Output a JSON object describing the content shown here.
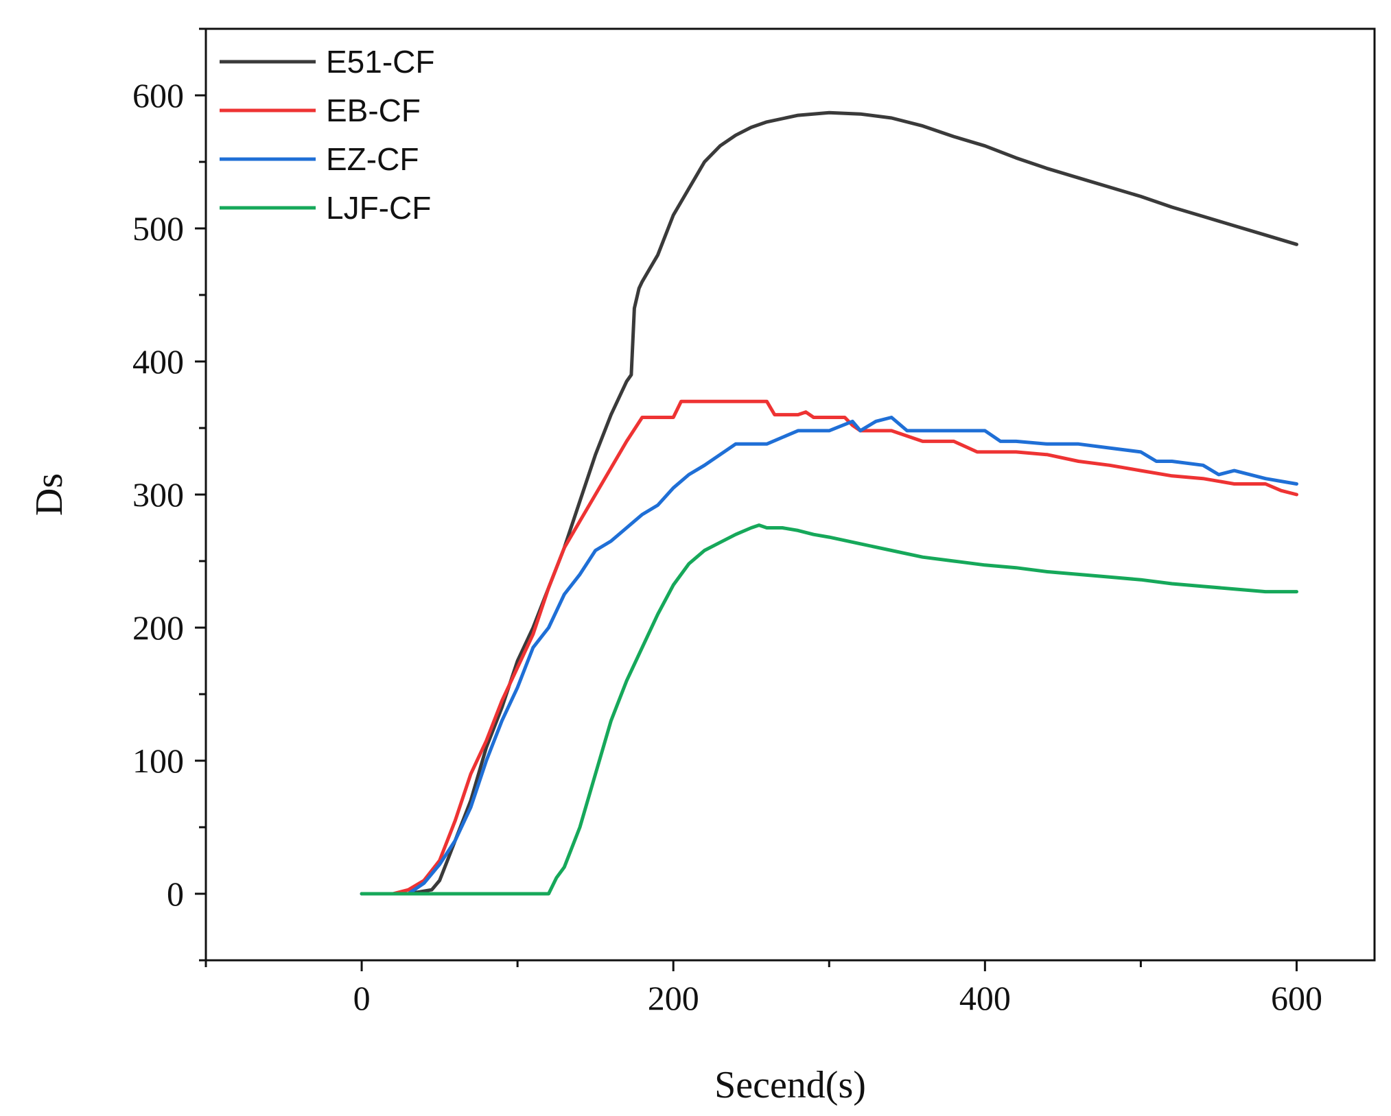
{
  "chart_data": {
    "type": "line",
    "title": "",
    "xlabel": "Secend(s)",
    "ylabel": "Ds",
    "xlim": [
      -100,
      650
    ],
    "ylim": [
      -50,
      650
    ],
    "xticks": [
      0,
      200,
      400,
      600
    ],
    "yticks": [
      0,
      100,
      200,
      300,
      400,
      500,
      600
    ],
    "xtick_labels": [
      "0",
      "200",
      "400",
      "600"
    ],
    "ytick_labels": [
      "0",
      "100",
      "200",
      "300",
      "400",
      "500",
      "600"
    ],
    "grid": false,
    "legend_position": "top-left",
    "series": [
      {
        "name": "E51-CF",
        "color": "#3a3a3a",
        "x": [
          0,
          30,
          45,
          50,
          55,
          60,
          70,
          80,
          90,
          100,
          110,
          120,
          130,
          140,
          150,
          160,
          170,
          173,
          175,
          178,
          180,
          185,
          190,
          200,
          210,
          220,
          230,
          240,
          250,
          260,
          280,
          300,
          320,
          340,
          360,
          380,
          400,
          420,
          440,
          460,
          480,
          500,
          520,
          540,
          560,
          580,
          600
        ],
        "y": [
          0,
          0,
          3,
          10,
          25,
          40,
          70,
          110,
          140,
          175,
          200,
          230,
          260,
          295,
          330,
          360,
          385,
          390,
          440,
          455,
          460,
          470,
          480,
          510,
          530,
          550,
          562,
          570,
          576,
          580,
          585,
          587,
          586,
          583,
          577,
          569,
          562,
          553,
          545,
          538,
          531,
          524,
          516,
          509,
          502,
          495,
          488
        ]
      },
      {
        "name": "EB-CF",
        "color": "#ee3333",
        "x": [
          0,
          20,
          30,
          40,
          50,
          60,
          70,
          80,
          90,
          100,
          110,
          120,
          130,
          140,
          150,
          160,
          170,
          180,
          190,
          200,
          205,
          210,
          220,
          240,
          260,
          265,
          270,
          280,
          285,
          290,
          300,
          310,
          315,
          320,
          330,
          340,
          360,
          380,
          395,
          400,
          420,
          440,
          460,
          480,
          490,
          500,
          520,
          540,
          560,
          580,
          590,
          600
        ],
        "y": [
          0,
          0,
          3,
          10,
          25,
          55,
          90,
          115,
          145,
          170,
          195,
          230,
          260,
          280,
          300,
          320,
          340,
          358,
          358,
          358,
          370,
          370,
          370,
          370,
          370,
          360,
          360,
          360,
          362,
          358,
          358,
          358,
          352,
          348,
          348,
          348,
          340,
          340,
          332,
          332,
          332,
          330,
          325,
          322,
          320,
          318,
          314,
          312,
          308,
          308,
          303,
          300
        ]
      },
      {
        "name": "EZ-CF",
        "color": "#1f6fd6",
        "x": [
          0,
          30,
          40,
          50,
          60,
          70,
          80,
          90,
          100,
          110,
          120,
          130,
          140,
          150,
          160,
          170,
          180,
          190,
          200,
          210,
          220,
          230,
          240,
          260,
          280,
          300,
          315,
          320,
          330,
          340,
          350,
          360,
          380,
          400,
          410,
          420,
          440,
          460,
          480,
          500,
          510,
          520,
          540,
          550,
          560,
          580,
          590,
          600
        ],
        "y": [
          0,
          0,
          8,
          22,
          40,
          65,
          100,
          130,
          155,
          185,
          200,
          225,
          240,
          258,
          265,
          275,
          285,
          292,
          305,
          315,
          322,
          330,
          338,
          338,
          348,
          348,
          355,
          348,
          355,
          358,
          348,
          348,
          348,
          348,
          340,
          340,
          338,
          338,
          335,
          332,
          325,
          325,
          322,
          315,
          318,
          312,
          310,
          308
        ]
      },
      {
        "name": "LJF-CF",
        "color": "#16a85a",
        "x": [
          0,
          120,
          125,
          130,
          140,
          150,
          160,
          170,
          180,
          190,
          200,
          210,
          220,
          230,
          240,
          250,
          255,
          260,
          270,
          280,
          290,
          300,
          320,
          340,
          360,
          380,
          400,
          420,
          440,
          460,
          480,
          500,
          520,
          540,
          560,
          580,
          600
        ],
        "y": [
          0,
          0,
          12,
          20,
          50,
          90,
          130,
          160,
          185,
          210,
          232,
          248,
          258,
          264,
          270,
          275,
          277,
          275,
          275,
          273,
          270,
          268,
          263,
          258,
          253,
          250,
          247,
          245,
          242,
          240,
          238,
          236,
          233,
          231,
          229,
          227,
          227
        ]
      }
    ]
  }
}
